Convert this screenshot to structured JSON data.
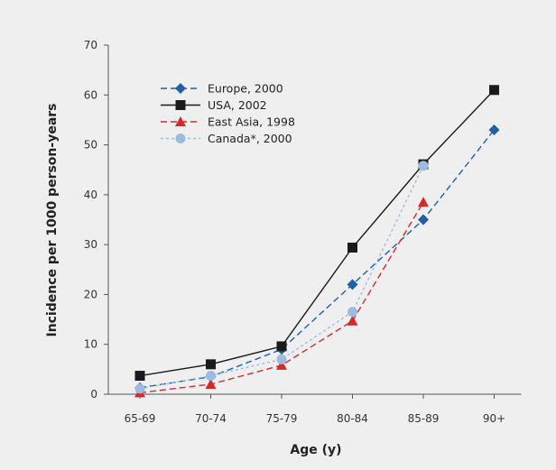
{
  "chart_data": {
    "type": "line",
    "title": "",
    "xlabel": "Age (y)",
    "ylabel": "Incidence per 1000 person-years",
    "categories": [
      "65-69",
      "70-74",
      "75-79",
      "80-84",
      "85-89",
      "90+"
    ],
    "ylim": [
      0,
      70
    ],
    "yticks": [
      0,
      10,
      20,
      30,
      40,
      50,
      60,
      70
    ],
    "grid": false,
    "legend_position": "top-left",
    "series": [
      {
        "name": "Europe, 2000",
        "marker": "diamond",
        "line_style": "dashed",
        "color": "#1f5fa6",
        "values": [
          1.3,
          3.5,
          9.0,
          22.0,
          35.0,
          53.0
        ]
      },
      {
        "name": "USA, 2002",
        "marker": "square",
        "line_style": "solid",
        "color": "#1a1a1a",
        "values": [
          3.7,
          6.0,
          9.6,
          29.4,
          46.1,
          61.0
        ]
      },
      {
        "name": "East Asia, 1998",
        "marker": "triangle",
        "line_style": "dashed",
        "color": "#d42a2a",
        "values": [
          0.3,
          2.0,
          5.8,
          14.7,
          38.5,
          null
        ]
      },
      {
        "name": "Canada*, 2000",
        "marker": "circle",
        "line_style": "dotted",
        "color": "#9dbbe0",
        "values": [
          1.1,
          3.7,
          7.0,
          16.5,
          45.8,
          null
        ]
      }
    ]
  }
}
